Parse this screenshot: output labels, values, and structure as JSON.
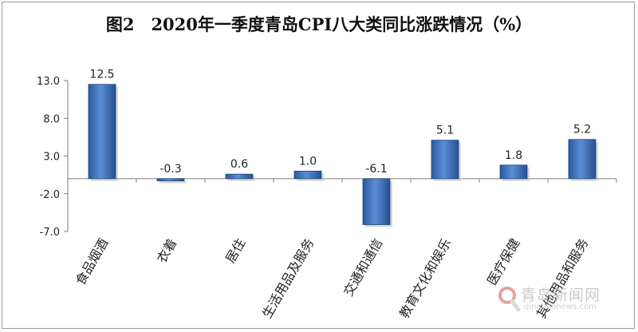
{
  "chart_data": {
    "type": "bar",
    "title": "图2　2020年一季度青岛CPI八大类同比涨跌情况（%）",
    "categories": [
      "食品烟酒",
      "衣着",
      "居住",
      "生活用品及服务",
      "交通和通信",
      "教育文化和娱乐",
      "医疗保健",
      "其他用品和服务"
    ],
    "values": [
      12.5,
      -0.3,
      0.6,
      1.0,
      -6.1,
      5.1,
      1.8,
      5.2
    ],
    "value_labels": [
      "12.5",
      "-0.3",
      "0.6",
      "1.0",
      "-6.1",
      "5.1",
      "1.8",
      "5.2"
    ],
    "y_ticks": [
      13.0,
      8.0,
      3.0,
      -2.0,
      -7.0
    ],
    "y_tick_labels": [
      "13.0",
      "8.0",
      "3.0",
      "-2.0",
      "-7.0"
    ],
    "ylim": [
      -7.0,
      13.0
    ],
    "xlabel": "",
    "ylabel": "",
    "grid": false,
    "bar_color": "#3f76c4"
  },
  "watermark": {
    "name": "青岛新闻网",
    "url": "qingdaonews.com",
    "icon": "magnifier-logo-icon"
  }
}
